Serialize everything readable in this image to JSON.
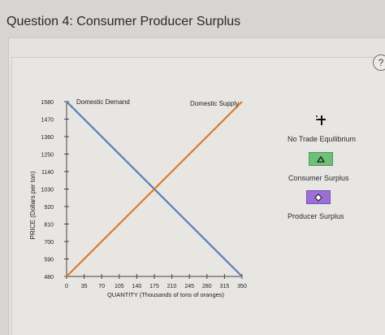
{
  "question": {
    "title": "Question 4: Consumer Producer Surplus"
  },
  "help": {
    "label": "?"
  },
  "legend": {
    "no_trade": "No Trade Equilibrium",
    "consumer": "Consumer Surplus",
    "producer": "Producer Surplus"
  },
  "colors": {
    "demand": "#5b7fb5",
    "supply": "#e07a2a",
    "consumer_tool": "#6fbf7a",
    "producer_tool": "#9b6fd6"
  },
  "icons": {
    "no_trade": "plus-cross-icon",
    "consumer": "triangle-icon",
    "producer": "diamond-icon"
  },
  "chart_data": {
    "type": "line",
    "xlabel": "QUANTITY (Thousands of tons of oranges)",
    "ylabel": "PRICE (Dollars per ton)",
    "xlim": [
      0,
      350
    ],
    "ylim": [
      480,
      1580
    ],
    "x_ticks": [
      0,
      35,
      70,
      105,
      140,
      175,
      210,
      245,
      280,
      315,
      350
    ],
    "y_ticks": [
      480,
      590,
      700,
      810,
      920,
      1030,
      1140,
      1250,
      1360,
      1470,
      1580
    ],
    "series": [
      {
        "name": "Domestic Demand",
        "x": [
          0,
          350
        ],
        "y": [
          1580,
          480
        ]
      },
      {
        "name": "Domestic Supply",
        "x": [
          0,
          350
        ],
        "y": [
          480,
          1580
        ]
      }
    ]
  }
}
